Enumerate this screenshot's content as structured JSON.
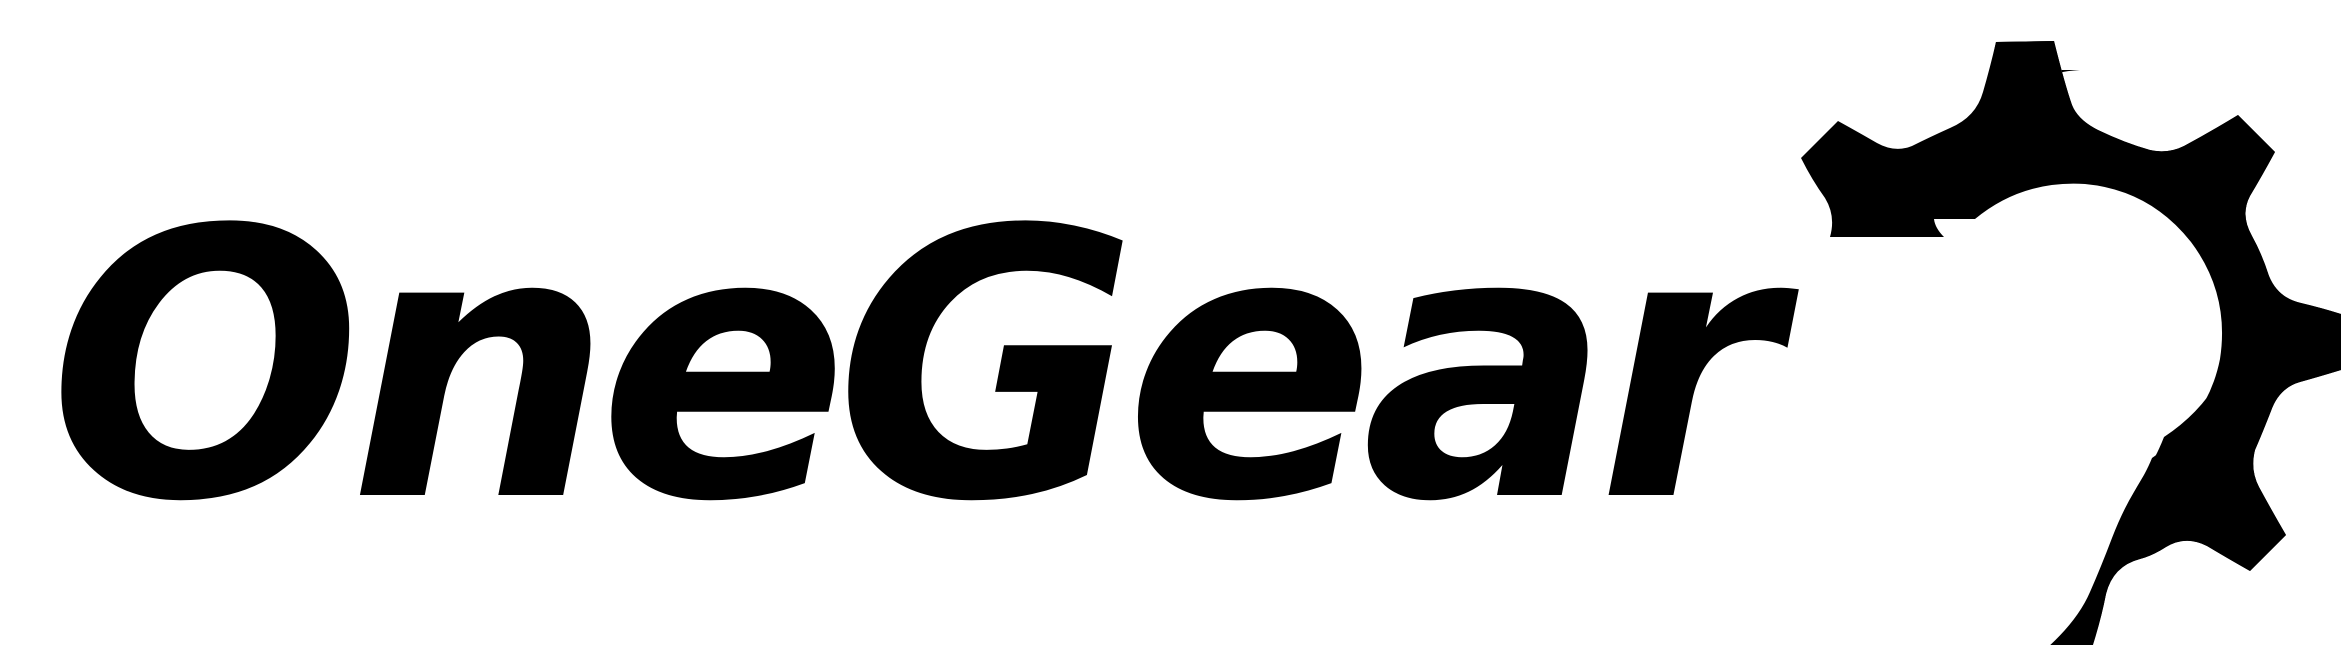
{
  "logo": {
    "text": "OneGear",
    "color": "#000000",
    "background": "#ffffff",
    "icon": "gear-icon"
  }
}
